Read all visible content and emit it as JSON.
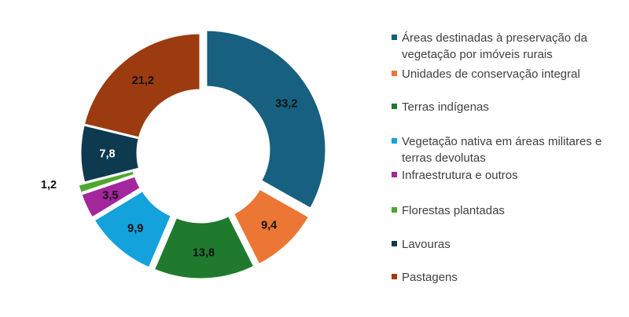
{
  "chart_data": {
    "type": "pie",
    "variant": "donut",
    "title": "",
    "categories": [
      "Áreas destinadas à preservação da vegetação por imóveis rurais",
      "Unidades de conservação integral",
      "Terras indígenas",
      "Vegetação nativa em áreas militares e terras devolutas",
      "Infraestrutura e outros",
      "Florestas plantadas",
      "Lavouras",
      "Pastagens"
    ],
    "values": [
      33.2,
      9.4,
      13.8,
      9.9,
      3.5,
      1.2,
      7.8,
      21.2
    ],
    "value_labels": [
      "33,2",
      "9,4",
      "13,8",
      "9,9",
      "3,5",
      "1,2",
      "7,8",
      "21,2"
    ],
    "colors": [
      "#17607f",
      "#ec7634",
      "#1f7a2e",
      "#14a2dc",
      "#a3269c",
      "#4ea72e",
      "#0d3a4f",
      "#9c3b10"
    ],
    "legend_position": "right"
  }
}
